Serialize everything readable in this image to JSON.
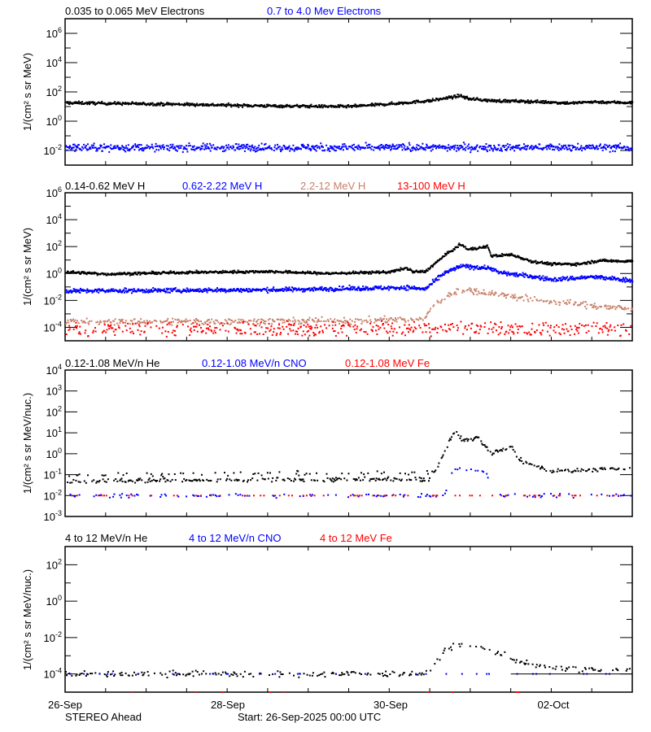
{
  "colors": {
    "black": "#000000",
    "blue": "#0000ff",
    "brown": "#c8806a",
    "red": "#ff0000"
  },
  "footer": {
    "spacecraft": "STEREO Ahead",
    "start": "Start: 26-Sep-2025 00:00 UTC"
  },
  "chart_data": [
    {
      "type": "scatter",
      "ylabel": "1/(cm² s sr MeV)",
      "yscale": "log",
      "ylim": [
        0.001,
        10000000
      ],
      "ytick_exponents": [
        -2,
        0,
        2,
        4,
        6
      ],
      "xlim": [
        "2025-09-26T00:00",
        "2025-10-03T00:00"
      ],
      "xticks": [],
      "legend": [
        "0.035 to 0.065 MeV Electrons",
        "0.7 to 4.0 Mev Electrons"
      ],
      "series": [
        {
          "name": "0.035 to 0.065 MeV Electrons",
          "color": "black",
          "points": [
            [
              "2025-09-26T00:00",
              18
            ],
            [
              "2025-09-27T12:00",
              14
            ],
            [
              "2025-09-28T12:00",
              11
            ],
            [
              "2025-09-29T12:00",
              10
            ],
            [
              "2025-09-30T00:00",
              15
            ],
            [
              "2025-09-30T12:00",
              25
            ],
            [
              "2025-09-30T21:00",
              55
            ],
            [
              "2025-09-30T23:00",
              35
            ],
            [
              "2025-10-01T06:00",
              25
            ],
            [
              "2025-10-01T18:00",
              22
            ],
            [
              "2025-10-02T06:00",
              17
            ],
            [
              "2025-10-02T12:00",
              21
            ],
            [
              "2025-10-03T00:00",
              18
            ]
          ]
        },
        {
          "name": "0.7 to 4.0 Mev Electrons",
          "color": "blue",
          "points": [
            [
              "2025-09-26T00:00",
              0.016
            ],
            [
              "2025-10-03T00:00",
              0.016
            ]
          ]
        }
      ]
    },
    {
      "type": "scatter",
      "ylabel": "1/(cm² s sr MeV)",
      "yscale": "log",
      "ylim": [
        1e-05,
        1000000
      ],
      "ytick_exponents": [
        -4,
        -2,
        0,
        2,
        4,
        6
      ],
      "xlim": [
        "2025-09-26T00:00",
        "2025-10-03T00:00"
      ],
      "xticks": [],
      "legend": [
        "0.14-0.62 MeV H",
        "0.62-2.22 MeV H",
        "2.2-12 MeV H",
        "13-100 MeV H"
      ],
      "series": [
        {
          "name": "0.14-0.62 MeV H",
          "color": "black",
          "points": [
            [
              "2025-09-26T00:00",
              1.3
            ],
            [
              "2025-09-26T12:00",
              0.9
            ],
            [
              "2025-09-27T12:00",
              1.2
            ],
            [
              "2025-09-28T12:00",
              1.4
            ],
            [
              "2025-09-29T06:00",
              1.0
            ],
            [
              "2025-09-30T00:00",
              1.3
            ],
            [
              "2025-09-30T05:00",
              2.5
            ],
            [
              "2025-09-30T07:00",
              1.3
            ],
            [
              "2025-09-30T10:30",
              1.4
            ],
            [
              "2025-09-30T16:00",
              20
            ],
            [
              "2025-09-30T21:00",
              150
            ],
            [
              "2025-09-30T23:00",
              60
            ],
            [
              "2025-10-01T05:00",
              100
            ],
            [
              "2025-10-01T06:00",
              20
            ],
            [
              "2025-10-01T12:00",
              25
            ],
            [
              "2025-10-01T18:00",
              8
            ],
            [
              "2025-10-02T00:00",
              5
            ],
            [
              "2025-10-02T08:00",
              5
            ],
            [
              "2025-10-02T14:00",
              9
            ],
            [
              "2025-10-03T00:00",
              8
            ]
          ]
        },
        {
          "name": "0.62-2.22 MeV H",
          "color": "blue",
          "points": [
            [
              "2025-09-26T00:00",
              0.05
            ],
            [
              "2025-09-28T12:00",
              0.06
            ],
            [
              "2025-09-30T05:00",
              0.09
            ],
            [
              "2025-09-30T10:30",
              0.07
            ],
            [
              "2025-09-30T16:00",
              1.0
            ],
            [
              "2025-09-30T21:00",
              3.5
            ],
            [
              "2025-10-01T06:00",
              2.5
            ],
            [
              "2025-10-01T08:00",
              1.2
            ],
            [
              "2025-10-01T18:00",
              0.6
            ],
            [
              "2025-10-02T00:00",
              0.35
            ],
            [
              "2025-10-02T12:00",
              0.55
            ],
            [
              "2025-10-03T00:00",
              0.3
            ]
          ]
        },
        {
          "name": "2.2-12 MeV H",
          "color": "brown",
          "points": [
            [
              "2025-09-26T00:00",
              0.00025
            ],
            [
              "2025-09-29T12:00",
              0.0003
            ],
            [
              "2025-09-30T10:00",
              0.0004
            ],
            [
              "2025-09-30T13:00",
              0.005
            ],
            [
              "2025-09-30T20:00",
              0.06
            ],
            [
              "2025-10-01T06:00",
              0.035
            ],
            [
              "2025-10-01T18:00",
              0.012
            ],
            [
              "2025-10-02T06:00",
              0.006
            ],
            [
              "2025-10-03T00:00",
              0.002
            ]
          ]
        },
        {
          "name": "13-100 MeV H",
          "color": "red",
          "points": [
            [
              "2025-09-26T00:00",
              0.0001
            ],
            [
              "2025-10-03T00:00",
              0.0001
            ]
          ]
        }
      ]
    },
    {
      "type": "scatter",
      "ylabel": "1/(cm² s sr MeV/nuc.)",
      "yscale": "log",
      "ylim": [
        0.001,
        10000
      ],
      "ytick_exponents": [
        -3,
        -2,
        -1,
        0,
        1,
        2,
        3,
        4
      ],
      "xlim": [
        "2025-09-26T00:00",
        "2025-10-03T00:00"
      ],
      "xticks": [],
      "legend": [
        "0.12-1.08 MeV/n He",
        "0.12-1.08 MeV/n CNO",
        "0.12-1.08 MeV Fe"
      ],
      "series": [
        {
          "name": "0.12-1.08 MeV/n He",
          "color": "black",
          "points": [
            [
              "2025-09-26T00:00",
              0.05
            ],
            [
              "2025-09-30T12:00",
              0.06
            ],
            [
              "2025-09-30T15:00",
              0.5
            ],
            [
              "2025-09-30T19:00",
              12
            ],
            [
              "2025-09-30T22:00",
              4
            ],
            [
              "2025-10-01T02:00",
              6
            ],
            [
              "2025-10-01T06:00",
              1.0
            ],
            [
              "2025-10-01T12:00",
              2.0
            ],
            [
              "2025-10-01T15:00",
              0.4
            ],
            [
              "2025-10-02T00:00",
              0.15
            ],
            [
              "2025-10-03T00:00",
              0.2
            ]
          ]
        },
        {
          "name": "0.12-1.08 MeV/n CNO",
          "color": "blue",
          "points": [
            [
              "2025-09-26T00:00",
              0.01
            ],
            [
              "2025-09-30T16:00",
              0.01
            ],
            [
              "2025-09-30T19:00",
              0.2
            ],
            [
              "2025-10-01T04:00",
              0.15
            ],
            [
              "2025-10-01T08:00",
              0.01
            ],
            [
              "2025-10-03T00:00",
              0.01
            ]
          ]
        },
        {
          "name": "0.12-1.08 MeV Fe",
          "color": "red",
          "points": [
            [
              "2025-09-26T00:00",
              0.01
            ],
            [
              "2025-10-03T00:00",
              0.01
            ]
          ]
        }
      ]
    },
    {
      "type": "scatter",
      "ylabel": "1/(cm² s sr MeV/nuc.)",
      "yscale": "log",
      "ylim": [
        1e-05,
        1000
      ],
      "ytick_exponents": [
        -4,
        -2,
        0,
        2
      ],
      "xlim": [
        "2025-09-26T00:00",
        "2025-10-03T00:00"
      ],
      "xticks": [
        "26-Sep",
        "28-Sep",
        "30-Sep",
        "02-Oct"
      ],
      "legend": [
        "4 to 12 MeV/n He",
        "4 to 12 MeV/n CNO",
        "4 to 12 MeV Fe"
      ],
      "series": [
        {
          "name": "4 to 12 MeV/n He",
          "color": "black",
          "points": [
            [
              "2025-09-26T00:00",
              0.0001
            ],
            [
              "2025-09-30T11:00",
              0.0001
            ],
            [
              "2025-09-30T13:00",
              0.0003
            ],
            [
              "2025-09-30T16:00",
              0.002
            ],
            [
              "2025-09-30T21:00",
              0.005
            ],
            [
              "2025-10-01T06:00",
              0.002
            ],
            [
              "2025-10-01T12:00",
              0.0007
            ],
            [
              "2025-10-01T18:00",
              0.0003
            ],
            [
              "2025-10-02T00:00",
              0.0002
            ],
            [
              "2025-10-03T00:00",
              0.00015
            ]
          ]
        },
        {
          "name": "4 to 12 MeV/n CNO",
          "color": "blue",
          "points": [
            [
              "2025-09-26T00:00",
              0.0001
            ],
            [
              "2025-10-03T00:00",
              0.0001
            ]
          ]
        },
        {
          "name": "4 to 12 MeV Fe",
          "color": "red",
          "points": [
            [
              "2025-09-26T00:00",
              1e-05
            ],
            [
              "2025-10-03T00:00",
              1e-05
            ]
          ]
        }
      ]
    }
  ]
}
